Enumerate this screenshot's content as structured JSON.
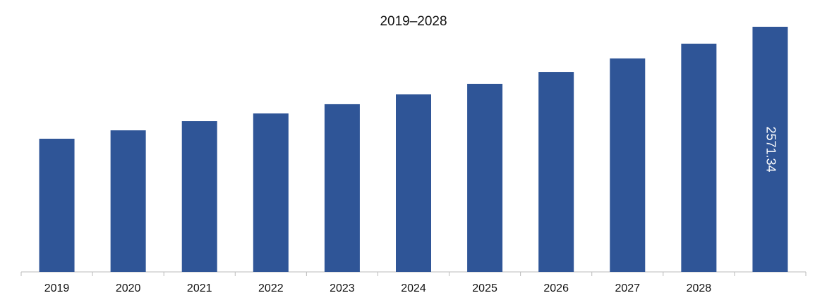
{
  "chart_data": {
    "type": "bar",
    "title": "2019–2028",
    "categories": [
      "2019",
      "2020",
      "2021",
      "2022",
      "2023",
      "2024",
      "2025",
      "2026",
      "2027",
      "2028",
      null
    ],
    "values": [
      1397,
      1485,
      1581,
      1662,
      1759,
      1862,
      1973,
      2098,
      2239,
      2394,
      2571.34
    ],
    "value_labels": [
      null,
      null,
      null,
      null,
      null,
      null,
      null,
      null,
      null,
      null,
      "2571.34"
    ],
    "color": "#2f5597"
  }
}
